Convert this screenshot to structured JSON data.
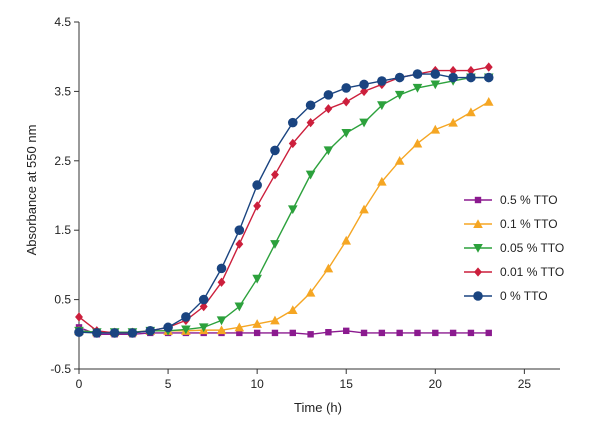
{
  "chart_data": {
    "type": "line",
    "title": "",
    "xlabel": "Time (h)",
    "ylabel": "Absorbance at 550 nm",
    "xlim": [
      0,
      27
    ],
    "ylim": [
      -0.5,
      4.5
    ],
    "x_ticks": [
      0,
      5,
      10,
      15,
      20,
      25
    ],
    "y_ticks": [
      -0.5,
      0.5,
      1.5,
      2.5,
      3.5,
      4.5
    ],
    "x_tick_labels": [
      "0",
      "5",
      "10",
      "15",
      "20",
      "25"
    ],
    "y_tick_labels": [
      "-0.5",
      "0.5",
      "1.5",
      "2.5",
      "3.5",
      "4.5"
    ],
    "grid": false,
    "legend_position": "right",
    "series": [
      {
        "name": "0.5 % TTO",
        "color": "#8b1a8f",
        "marker": "square",
        "x": [
          0,
          1,
          2,
          3,
          4,
          5,
          6,
          7,
          8,
          9,
          10,
          11,
          12,
          13,
          14,
          15,
          16,
          17,
          18,
          19,
          20,
          21,
          22,
          23
        ],
        "y": [
          0.1,
          0.0,
          0.0,
          0.0,
          0.02,
          0.02,
          0.02,
          0.02,
          0.02,
          0.02,
          0.02,
          0.02,
          0.02,
          0.0,
          0.03,
          0.05,
          0.02,
          0.02,
          0.02,
          0.02,
          0.02,
          0.02,
          0.02,
          0.02
        ]
      },
      {
        "name": "0.1 % TTO",
        "color": "#f5a623",
        "marker": "triangle-up",
        "x": [
          0,
          1,
          2,
          3,
          4,
          5,
          6,
          7,
          8,
          9,
          10,
          11,
          12,
          13,
          14,
          15,
          16,
          17,
          18,
          19,
          20,
          21,
          22,
          23
        ],
        "y": [
          0.05,
          0.03,
          0.03,
          0.03,
          0.05,
          0.05,
          0.05,
          0.06,
          0.06,
          0.1,
          0.15,
          0.2,
          0.35,
          0.6,
          0.95,
          1.35,
          1.8,
          2.2,
          2.5,
          2.75,
          2.95,
          3.05,
          3.2,
          3.35
        ]
      },
      {
        "name": "0.05 % TTO",
        "color": "#2ca13c",
        "marker": "triangle-down",
        "x": [
          0,
          1,
          2,
          3,
          4,
          5,
          6,
          7,
          8,
          9,
          10,
          11,
          12,
          13,
          14,
          15,
          16,
          17,
          18,
          19,
          20,
          21,
          22,
          23
        ],
        "y": [
          0.05,
          0.03,
          0.03,
          0.03,
          0.05,
          0.05,
          0.07,
          0.1,
          0.2,
          0.4,
          0.8,
          1.3,
          1.8,
          2.3,
          2.65,
          2.9,
          3.05,
          3.3,
          3.45,
          3.55,
          3.6,
          3.65,
          3.7,
          3.7
        ]
      },
      {
        "name": "0.01 % TTO",
        "color": "#cc1f3c",
        "marker": "diamond",
        "x": [
          0,
          1,
          2,
          3,
          4,
          5,
          6,
          7,
          8,
          9,
          10,
          11,
          12,
          13,
          14,
          15,
          16,
          17,
          18,
          19,
          20,
          21,
          22,
          23
        ],
        "y": [
          0.25,
          0.05,
          0.02,
          0.02,
          0.05,
          0.1,
          0.2,
          0.4,
          0.75,
          1.3,
          1.85,
          2.3,
          2.75,
          3.05,
          3.25,
          3.35,
          3.5,
          3.6,
          3.7,
          3.75,
          3.8,
          3.8,
          3.8,
          3.85
        ]
      },
      {
        "name": "0 % TTO",
        "color": "#1a4480",
        "marker": "circle",
        "x": [
          0,
          1,
          2,
          3,
          4,
          5,
          6,
          7,
          8,
          9,
          10,
          11,
          12,
          13,
          14,
          15,
          16,
          17,
          18,
          19,
          20,
          21,
          22,
          23
        ],
        "y": [
          0.03,
          0.02,
          0.02,
          0.02,
          0.05,
          0.1,
          0.25,
          0.5,
          0.95,
          1.5,
          2.15,
          2.65,
          3.05,
          3.3,
          3.45,
          3.55,
          3.6,
          3.65,
          3.7,
          3.75,
          3.75,
          3.7,
          3.7,
          3.7
        ]
      }
    ]
  }
}
